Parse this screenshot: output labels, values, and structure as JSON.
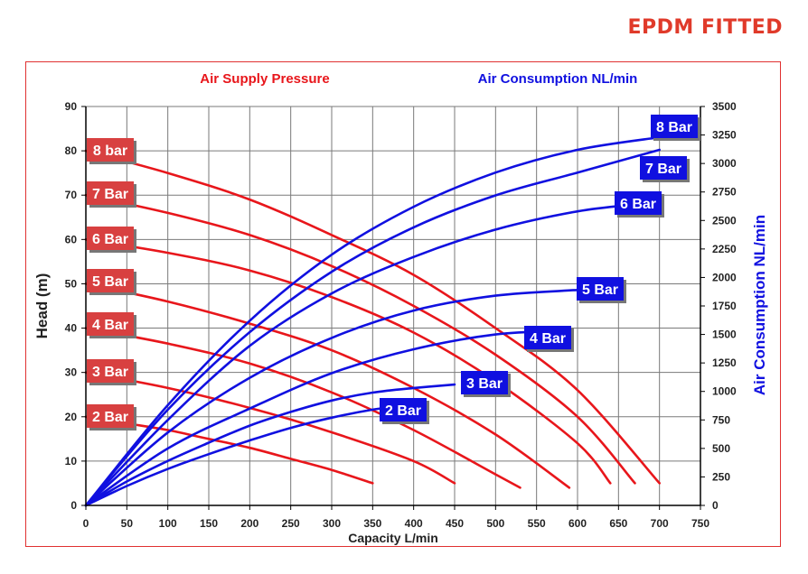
{
  "badge": "EPDM FITTED",
  "colors": {
    "red": "#e8161b",
    "blue": "#1010e0",
    "badge": "#e03a2a",
    "grid": "#7a7a7a"
  },
  "chart_data": {
    "type": "line",
    "title_left": "Air Supply Pressure",
    "title_right": "Air Consumption NL/min",
    "xlabel": "Capacity L/min",
    "ylabel_left": "Head (m)",
    "ylabel_right": "Air Consumption NL/min",
    "xlim": [
      0,
      750
    ],
    "ylim_left": [
      0,
      90
    ],
    "ylim_right": [
      0,
      3500
    ],
    "x_ticks": [
      0,
      50,
      100,
      150,
      200,
      250,
      300,
      350,
      400,
      450,
      500,
      550,
      600,
      650,
      700,
      750
    ],
    "y_ticks_left": [
      0,
      10,
      20,
      30,
      40,
      50,
      60,
      70,
      80,
      90
    ],
    "y_ticks_right": [
      0,
      250,
      500,
      750,
      1000,
      1250,
      1500,
      1750,
      2000,
      2250,
      2500,
      2750,
      3000,
      3250,
      3500
    ],
    "grid": true,
    "head_series": [
      {
        "name": "2 Bar",
        "axis": "left",
        "x": [
          0,
          50,
          100,
          150,
          200,
          250,
          300,
          350
        ],
        "y": [
          20,
          18.5,
          17,
          15,
          13,
          10.5,
          8,
          5
        ]
      },
      {
        "name": "3 Bar",
        "axis": "left",
        "x": [
          0,
          100,
          200,
          300,
          400,
          450
        ],
        "y": [
          30,
          26.5,
          22,
          16.5,
          10,
          5
        ]
      },
      {
        "name": "4 Bar",
        "axis": "left",
        "x": [
          0,
          100,
          200,
          300,
          400,
          500,
          530
        ],
        "y": [
          40,
          36.5,
          32,
          25.5,
          17,
          7,
          4
        ]
      },
      {
        "name": "5 Bar",
        "axis": "left",
        "x": [
          0,
          100,
          200,
          300,
          400,
          500,
          590
        ],
        "y": [
          50,
          46,
          41,
          35,
          26.5,
          16,
          4
        ]
      },
      {
        "name": "6 Bar",
        "axis": "left",
        "x": [
          0,
          100,
          200,
          300,
          400,
          500,
          600,
          640
        ],
        "y": [
          60,
          57,
          53,
          47,
          39,
          28,
          14,
          5
        ]
      },
      {
        "name": "7 Bar",
        "axis": "left",
        "x": [
          0,
          100,
          200,
          300,
          400,
          500,
          600,
          670
        ],
        "y": [
          70,
          66,
          61,
          54,
          45,
          34,
          20,
          5
        ]
      },
      {
        "name": "8 bar",
        "axis": "left",
        "x": [
          0,
          100,
          200,
          300,
          400,
          500,
          600,
          700
        ],
        "y": [
          80,
          75,
          69,
          61,
          52,
          40,
          26,
          5
        ]
      }
    ],
    "air_series": [
      {
        "name": "2 Bar",
        "axis": "right",
        "x": [
          0,
          50,
          100,
          150,
          200,
          250,
          300,
          350,
          410
        ],
        "y": [
          0,
          170,
          320,
          450,
          570,
          680,
          770,
          840,
          900
        ]
      },
      {
        "name": "3 Bar",
        "axis": "right",
        "x": [
          0,
          50,
          100,
          150,
          200,
          250,
          300,
          350,
          400,
          450
        ],
        "y": [
          0,
          210,
          390,
          550,
          700,
          820,
          920,
          990,
          1030,
          1060
        ]
      },
      {
        "name": "4 Bar",
        "axis": "right",
        "x": [
          0,
          100,
          200,
          300,
          400,
          500,
          580
        ],
        "y": [
          0,
          500,
          850,
          1160,
          1370,
          1500,
          1530
        ]
      },
      {
        "name": "5 Bar",
        "axis": "right",
        "x": [
          0,
          100,
          200,
          300,
          400,
          500,
          600,
          630
        ],
        "y": [
          0,
          640,
          1120,
          1470,
          1710,
          1840,
          1890,
          1900
        ]
      },
      {
        "name": "6 Bar",
        "axis": "right",
        "x": [
          0,
          100,
          200,
          300,
          400,
          500,
          600,
          670
        ],
        "y": [
          0,
          750,
          1400,
          1860,
          2180,
          2420,
          2580,
          2640
        ]
      },
      {
        "name": "7 Bar",
        "axis": "right",
        "x": [
          0,
          100,
          200,
          300,
          400,
          500,
          600,
          700
        ],
        "y": [
          0,
          840,
          1520,
          2050,
          2440,
          2720,
          2920,
          3120
        ]
      },
      {
        "name": "8 Bar",
        "axis": "right",
        "x": [
          0,
          100,
          200,
          300,
          400,
          500,
          600,
          700
        ],
        "y": [
          0,
          880,
          1620,
          2200,
          2620,
          2920,
          3120,
          3230
        ]
      }
    ],
    "head_labels": [
      "8 bar",
      "7 Bar",
      "6 Bar",
      "5 Bar",
      "4 Bar",
      "3 Bar",
      "2 Bar"
    ],
    "air_labels": [
      "8 Bar",
      "7 Bar",
      "6 Bar",
      "5 Bar",
      "4 Bar",
      "3 Bar",
      "2 Bar"
    ]
  }
}
